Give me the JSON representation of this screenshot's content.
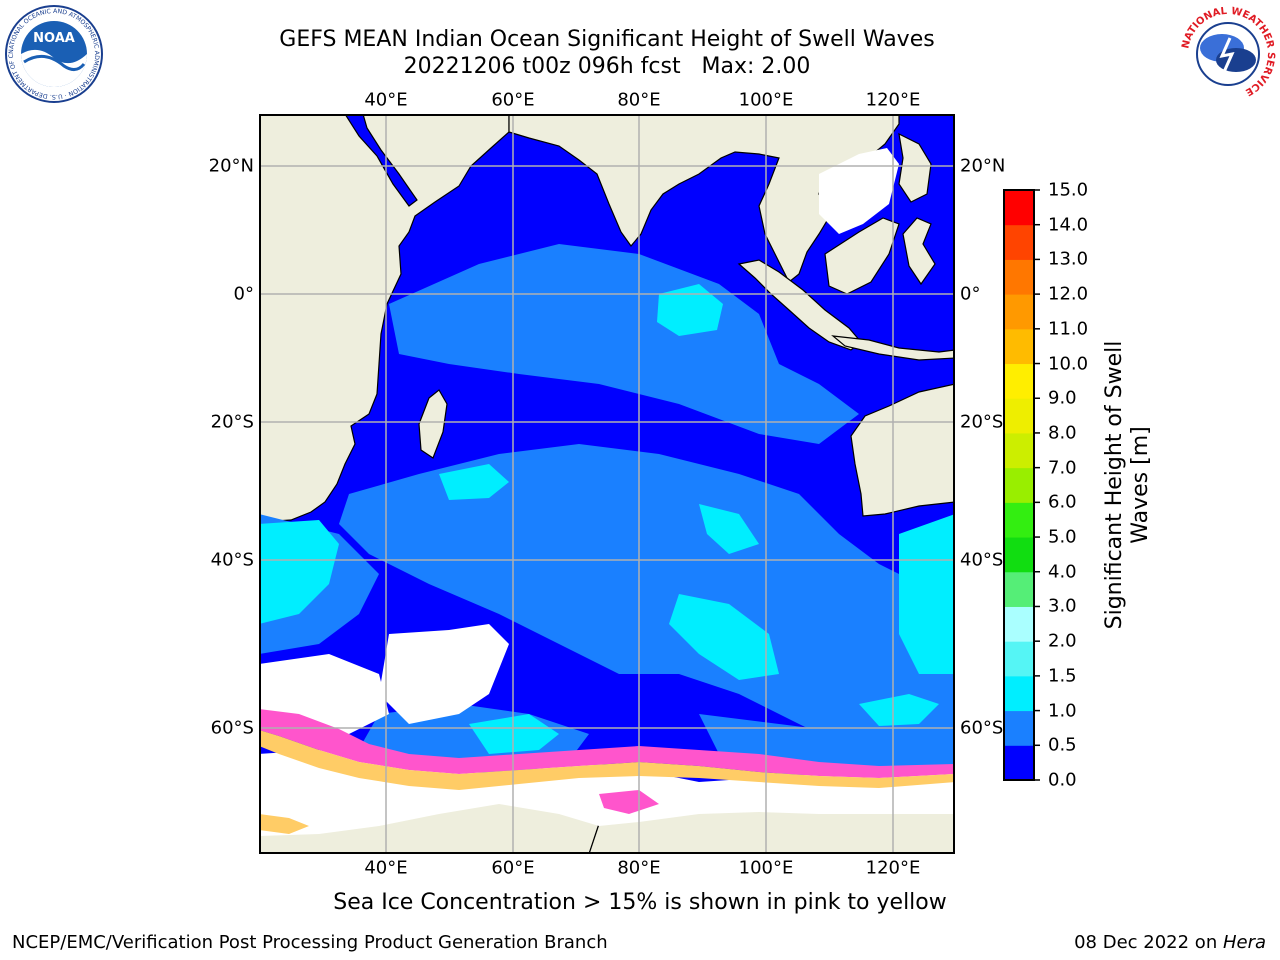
{
  "title": {
    "line1": "GEFS MEAN Indian Ocean Significant Height of Swell Waves",
    "line2": "20221206 t00z 096h fcst   Max: 2.00"
  },
  "map": {
    "lon_ticks": [
      "40°E",
      "60°E",
      "80°E",
      "100°E",
      "120°E"
    ],
    "lat_ticks_left": [
      "20°N",
      "0°",
      "20°S",
      "40°S",
      "60°S"
    ],
    "lat_ticks_right": [
      "20°N",
      "0°",
      "20°S",
      "40°S",
      "60°S"
    ],
    "colors": {
      "land": "#eeeedd",
      "no_data": "#ffffff",
      "grid": "#b0b0b0",
      "coast": "#000000"
    }
  },
  "colorbar": {
    "label_line1": "Significant Height of Swell",
    "label_line2": "Waves [m]",
    "ticks": [
      "0.0",
      "0.5",
      "1.0",
      "1.5",
      "2.0",
      "3.0",
      "4.0",
      "5.0",
      "6.0",
      "7.0",
      "8.0",
      "9.0",
      "10.0",
      "11.0",
      "12.0",
      "13.0",
      "14.0",
      "15.0"
    ],
    "colors": [
      "#0000ff",
      "#1a80ff",
      "#00eeff",
      "#55f5f5",
      "#aaffff",
      "#55ee77",
      "#11dd11",
      "#33ee11",
      "#99ee00",
      "#ccee00",
      "#eeee00",
      "#ffee00",
      "#ffbb00",
      "#ff9900",
      "#ff7700",
      "#ff4400",
      "#ff0000"
    ]
  },
  "caption": "Sea Ice Concentration > 15% is shown in pink to yellow",
  "footer": {
    "left": "NCEP/EMC/Verification Post Processing Product Generation Branch",
    "date": "08 Dec 2022 on ",
    "host": "Hera"
  },
  "logos": {
    "noaa_text": "NOAA",
    "noaa_ring": "NATIONAL OCEANIC AND ATMOSPHERIC ADMINISTRATION · U.S. DEPARTMENT OF COMMERCE",
    "nws_ring": "NATIONAL WEATHER SERVICE"
  }
}
